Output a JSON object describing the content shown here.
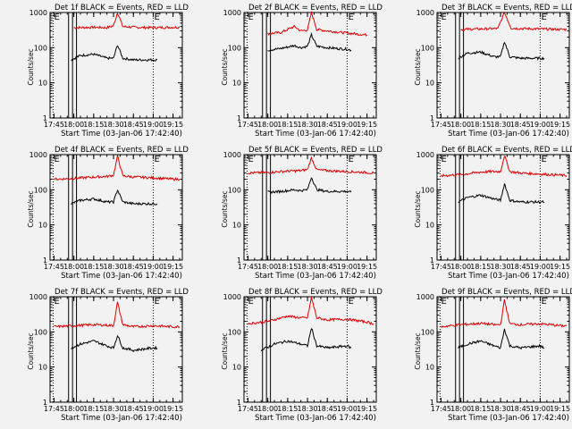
{
  "colors": {
    "background": "#f2f2f2",
    "axes": "#000000",
    "events": "#000000",
    "lld": "#dd0000"
  },
  "chart_data": [
    {
      "type": "line",
      "title": "Det 1f BLACK = Events, RED = LLD",
      "xlabel": "Start Time (03-Jan-06 17:42:40)",
      "ylabel": "Counts/sec",
      "yscale": "log",
      "ylim": [
        1,
        1000
      ],
      "xticks": [
        "17:45",
        "18:00",
        "18:15",
        "18:30",
        "18:45",
        "19:00",
        "19:15"
      ],
      "yticks": [
        "1",
        "10",
        "100",
        "1000"
      ],
      "markers": [
        {
          "label": "E",
          "x": "17:45"
        },
        {
          "label": "E",
          "x": "19:00"
        }
      ],
      "series": [
        {
          "color": "red",
          "x": [
            "18:00",
            "18:15",
            "18:25",
            "18:30",
            "18:33",
            "18:37",
            "18:45",
            "19:00",
            "19:15",
            "19:20"
          ],
          "values": [
            370,
            380,
            370,
            420,
            1000,
            400,
            380,
            370,
            380,
            380
          ]
        },
        {
          "color": "black",
          "x": [
            "17:58",
            "18:05",
            "18:15",
            "18:25",
            "18:30",
            "18:33",
            "18:37",
            "18:45",
            "19:00",
            "19:03"
          ],
          "values": [
            45,
            60,
            65,
            50,
            50,
            120,
            50,
            45,
            45,
            45
          ]
        }
      ]
    },
    {
      "type": "line",
      "title": "Det 2f BLACK = Events, RED = LLD",
      "xlabel": "Start Time (03-Jan-06 17:42:40)",
      "ylabel": "Counts/sec",
      "yscale": "log",
      "ylim": [
        1,
        1000
      ],
      "xticks": [
        "17:45",
        "18:00",
        "18:15",
        "18:30",
        "18:45",
        "19:00",
        "19:15"
      ],
      "yticks": [
        "1",
        "10",
        "100",
        "1000"
      ],
      "markers": [
        {
          "label": "E",
          "x": "17:45"
        },
        {
          "label": "E",
          "x": "19:00"
        }
      ],
      "series": [
        {
          "color": "red",
          "x": [
            "18:00",
            "18:10",
            "18:20",
            "18:25",
            "18:30",
            "18:33",
            "18:37",
            "18:45",
            "19:00",
            "19:10",
            "19:15"
          ],
          "values": [
            250,
            270,
            400,
            300,
            320,
            1000,
            330,
            300,
            260,
            240,
            230
          ]
        },
        {
          "color": "black",
          "x": [
            "18:00",
            "18:10",
            "18:20",
            "18:25",
            "18:30",
            "18:33",
            "18:37",
            "18:45",
            "19:00",
            "19:03"
          ],
          "values": [
            85,
            95,
            115,
            100,
            110,
            230,
            110,
            100,
            90,
            85
          ]
        }
      ]
    },
    {
      "type": "line",
      "title": "Det 3f BLACK = Events, RED = LLD",
      "xlabel": "Start Time (03-Jan-06 17:42:40)",
      "ylabel": "Counts/sec",
      "yscale": "log",
      "ylim": [
        1,
        1000
      ],
      "xticks": [
        "17:45",
        "18:00",
        "18:15",
        "18:30",
        "18:45",
        "19:00",
        "19:15"
      ],
      "yticks": [
        "1",
        "10",
        "100",
        "1000"
      ],
      "markers": [
        {
          "label": "E",
          "x": "17:45"
        },
        {
          "label": "E",
          "x": "19:00"
        }
      ],
      "series": [
        {
          "color": "red",
          "x": [
            "18:00",
            "18:15",
            "18:28",
            "18:33",
            "18:38",
            "18:45",
            "19:00",
            "19:15",
            "19:20"
          ],
          "values": [
            330,
            340,
            350,
            1000,
            360,
            350,
            340,
            330,
            330
          ]
        },
        {
          "color": "black",
          "x": [
            "17:58",
            "18:05",
            "18:15",
            "18:25",
            "18:30",
            "18:33",
            "18:37",
            "18:45",
            "19:00",
            "19:03"
          ],
          "values": [
            50,
            70,
            75,
            55,
            55,
            150,
            55,
            50,
            50,
            50
          ]
        }
      ]
    },
    {
      "type": "line",
      "title": "Det 4f BLACK = Events, RED = LLD",
      "xlabel": "Start Time (03-Jan-06 17:42:40)",
      "ylabel": "Counts/sec",
      "yscale": "log",
      "ylim": [
        1,
        1000
      ],
      "xticks": [
        "17:45",
        "18:00",
        "18:15",
        "18:30",
        "18:45",
        "19:00",
        "19:15"
      ],
      "yticks": [
        "1",
        "10",
        "100",
        "1000"
      ],
      "markers": [
        {
          "label": "E",
          "x": "17:45"
        },
        {
          "label": "E",
          "x": "19:00"
        }
      ],
      "series": [
        {
          "color": "red",
          "x": [
            "17:45",
            "18:00",
            "18:15",
            "18:25",
            "18:30",
            "18:33",
            "18:37",
            "18:45",
            "19:00",
            "19:15",
            "19:20"
          ],
          "values": [
            200,
            210,
            230,
            240,
            260,
            900,
            250,
            230,
            220,
            200,
            200
          ]
        },
        {
          "color": "black",
          "x": [
            "17:58",
            "18:05",
            "18:15",
            "18:25",
            "18:30",
            "18:33",
            "18:37",
            "18:45",
            "19:00",
            "19:03"
          ],
          "values": [
            40,
            50,
            55,
            45,
            45,
            100,
            45,
            40,
            40,
            40
          ]
        }
      ]
    },
    {
      "type": "line",
      "title": "Det 5f BLACK = Events, RED = LLD",
      "xlabel": "Start Time (03-Jan-06 17:42:40)",
      "ylabel": "Counts/sec",
      "yscale": "log",
      "ylim": [
        1,
        1000
      ],
      "xticks": [
        "17:45",
        "18:00",
        "18:15",
        "18:30",
        "18:45",
        "19:00",
        "19:15"
      ],
      "yticks": [
        "1",
        "10",
        "100",
        "1000"
      ],
      "markers": [
        {
          "label": "E",
          "x": "17:45"
        },
        {
          "label": "E",
          "x": "19:00"
        }
      ],
      "series": [
        {
          "color": "red",
          "x": [
            "17:45",
            "18:00",
            "18:15",
            "18:25",
            "18:30",
            "18:33",
            "18:37",
            "18:45",
            "19:00",
            "19:15",
            "19:20"
          ],
          "values": [
            300,
            310,
            340,
            350,
            380,
            800,
            370,
            350,
            330,
            310,
            300
          ]
        },
        {
          "color": "black",
          "x": [
            "18:00",
            "18:10",
            "18:20",
            "18:25",
            "18:30",
            "18:33",
            "18:37",
            "18:45",
            "19:00",
            "19:03"
          ],
          "values": [
            85,
            90,
            100,
            95,
            100,
            230,
            100,
            90,
            90,
            85
          ]
        }
      ]
    },
    {
      "type": "line",
      "title": "Det 6f BLACK = Events, RED = LLD",
      "xlabel": "Start Time (03-Jan-06 17:42:40)",
      "ylabel": "Counts/sec",
      "yscale": "log",
      "ylim": [
        1,
        1000
      ],
      "xticks": [
        "17:45",
        "18:00",
        "18:15",
        "18:30",
        "18:45",
        "19:00",
        "19:15"
      ],
      "yticks": [
        "1",
        "10",
        "100",
        "1000"
      ],
      "markers": [
        {
          "label": "E",
          "x": "17:45"
        },
        {
          "label": "E",
          "x": "19:00"
        }
      ],
      "series": [
        {
          "color": "red",
          "x": [
            "17:45",
            "18:00",
            "18:15",
            "18:25",
            "18:30",
            "18:33",
            "18:37",
            "18:45",
            "19:00",
            "19:15",
            "19:20"
          ],
          "values": [
            250,
            270,
            320,
            330,
            330,
            950,
            330,
            300,
            280,
            260,
            250
          ]
        },
        {
          "color": "black",
          "x": [
            "17:58",
            "18:05",
            "18:15",
            "18:25",
            "18:30",
            "18:33",
            "18:37",
            "18:45",
            "19:00",
            "19:03"
          ],
          "values": [
            45,
            60,
            70,
            55,
            50,
            150,
            50,
            45,
            45,
            45
          ]
        }
      ]
    },
    {
      "type": "line",
      "title": "Det 7f BLACK = Events, RED = LLD",
      "xlabel": "Start Time (03-Jan-06 17:42:40)",
      "ylabel": "Counts/sec",
      "yscale": "log",
      "ylim": [
        1,
        1000
      ],
      "xticks": [
        "17:45",
        "18:00",
        "18:15",
        "18:30",
        "18:45",
        "19:00",
        "19:15"
      ],
      "yticks": [
        "1",
        "10",
        "100",
        "1000"
      ],
      "markers": [
        {
          "label": "E",
          "x": "17:45"
        },
        {
          "label": "E",
          "x": "19:00"
        }
      ],
      "series": [
        {
          "color": "red",
          "x": [
            "17:45",
            "18:00",
            "18:15",
            "18:25",
            "18:30",
            "18:33",
            "18:37",
            "18:45",
            "19:00",
            "19:15",
            "19:20"
          ],
          "values": [
            140,
            150,
            160,
            155,
            150,
            700,
            160,
            140,
            150,
            140,
            140
          ]
        },
        {
          "color": "black",
          "x": [
            "17:58",
            "18:05",
            "18:15",
            "18:25",
            "18:30",
            "18:33",
            "18:37",
            "18:45",
            "19:00",
            "19:03"
          ],
          "values": [
            35,
            45,
            55,
            40,
            35,
            80,
            35,
            30,
            35,
            35
          ]
        }
      ]
    },
    {
      "type": "line",
      "title": "Det 8f BLACK = Events, RED = LLD",
      "xlabel": "Start Time (03-Jan-06 17:42:40)",
      "ylabel": "Counts/sec",
      "yscale": "log",
      "ylim": [
        1,
        1000
      ],
      "xticks": [
        "17:45",
        "18:00",
        "18:15",
        "18:30",
        "18:45",
        "19:00",
        "19:15"
      ],
      "yticks": [
        "1",
        "10",
        "100",
        "1000"
      ],
      "markers": [
        {
          "label": "E",
          "x": "17:45"
        },
        {
          "label": "E",
          "x": "19:00"
        }
      ],
      "series": [
        {
          "color": "red",
          "x": [
            "17:45",
            "18:00",
            "18:15",
            "18:25",
            "18:30",
            "18:33",
            "18:37",
            "18:45",
            "19:00",
            "19:15",
            "19:20"
          ],
          "values": [
            170,
            200,
            280,
            250,
            250,
            950,
            250,
            220,
            230,
            190,
            170
          ]
        },
        {
          "color": "black",
          "x": [
            "17:55",
            "18:05",
            "18:15",
            "18:25",
            "18:30",
            "18:33",
            "18:37",
            "18:45",
            "19:00",
            "19:03"
          ],
          "values": [
            30,
            45,
            55,
            45,
            40,
            130,
            40,
            35,
            40,
            35
          ]
        }
      ]
    },
    {
      "type": "line",
      "title": "Det 9f BLACK = Events, RED = LLD",
      "xlabel": "Start Time (03-Jan-06 17:42:40)",
      "ylabel": "Counts/sec",
      "yscale": "log",
      "ylim": [
        1,
        1000
      ],
      "xticks": [
        "17:45",
        "18:00",
        "18:15",
        "18:30",
        "18:45",
        "19:00",
        "19:15"
      ],
      "yticks": [
        "1",
        "10",
        "100",
        "1000"
      ],
      "markers": [
        {
          "label": "E",
          "x": "17:45"
        },
        {
          "label": "E",
          "x": "19:00"
        }
      ],
      "series": [
        {
          "color": "red",
          "x": [
            "17:45",
            "18:00",
            "18:15",
            "18:25",
            "18:30",
            "18:33",
            "18:37",
            "18:45",
            "19:00",
            "19:15",
            "19:20"
          ],
          "values": [
            140,
            160,
            175,
            160,
            160,
            800,
            170,
            160,
            170,
            150,
            150
          ]
        },
        {
          "color": "black",
          "x": [
            "17:58",
            "18:05",
            "18:15",
            "18:25",
            "18:30",
            "18:33",
            "18:37",
            "18:45",
            "19:00",
            "19:03"
          ],
          "values": [
            35,
            45,
            55,
            40,
            35,
            120,
            40,
            35,
            40,
            35
          ]
        }
      ]
    }
  ]
}
